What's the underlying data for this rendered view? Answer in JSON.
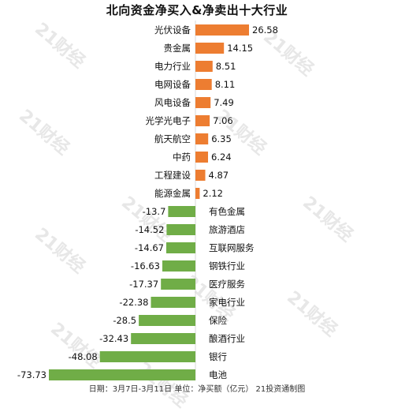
{
  "header": {
    "title": "北向资金净买入&净卖出十大行业"
  },
  "footer": {
    "note": "日期：3月7日-3月11日 单位：净买额（亿元） 21投资通制图"
  },
  "watermark": {
    "text": "21财经"
  },
  "colors": {
    "positive": "#ed7d31",
    "negative": "#70ad47",
    "axis": "#d9d9d9",
    "text": "#111111"
  },
  "chart_data": {
    "type": "bar",
    "orientation": "horizontal",
    "title": "北向资金净买入&净卖出十大行业",
    "categories": [
      "光伏设备",
      "贵金属",
      "电力行业",
      "电网设备",
      "风电设备",
      "光学光电子",
      "航天航空",
      "中药",
      "工程建设",
      "能源金属",
      "有色金属",
      "旅游酒店",
      "互联网服务",
      "钢铁行业",
      "医疗服务",
      "家电行业",
      "保险",
      "酿酒行业",
      "银行",
      "电池"
    ],
    "values": [
      26.58,
      14.15,
      8.51,
      8.11,
      7.49,
      7.06,
      6.35,
      6.24,
      4.87,
      2.12,
      -13.7,
      -14.52,
      -14.67,
      -16.63,
      -17.37,
      -22.38,
      -28.5,
      -32.43,
      -48.08,
      -73.73
    ],
    "value_labels": [
      "26.58",
      "14.15",
      "8.51",
      "8.11",
      "7.49",
      "7.06",
      "6.35",
      "6.24",
      "4.87",
      "2.12",
      "-13.7",
      "-14.52",
      "-14.67",
      "-16.63",
      "-17.37",
      "-22.38",
      "-28.5",
      "-32.43",
      "-48.08",
      "-73.73"
    ],
    "xlim": [
      -73.73,
      26.58
    ],
    "grid": false,
    "legend": "none"
  }
}
